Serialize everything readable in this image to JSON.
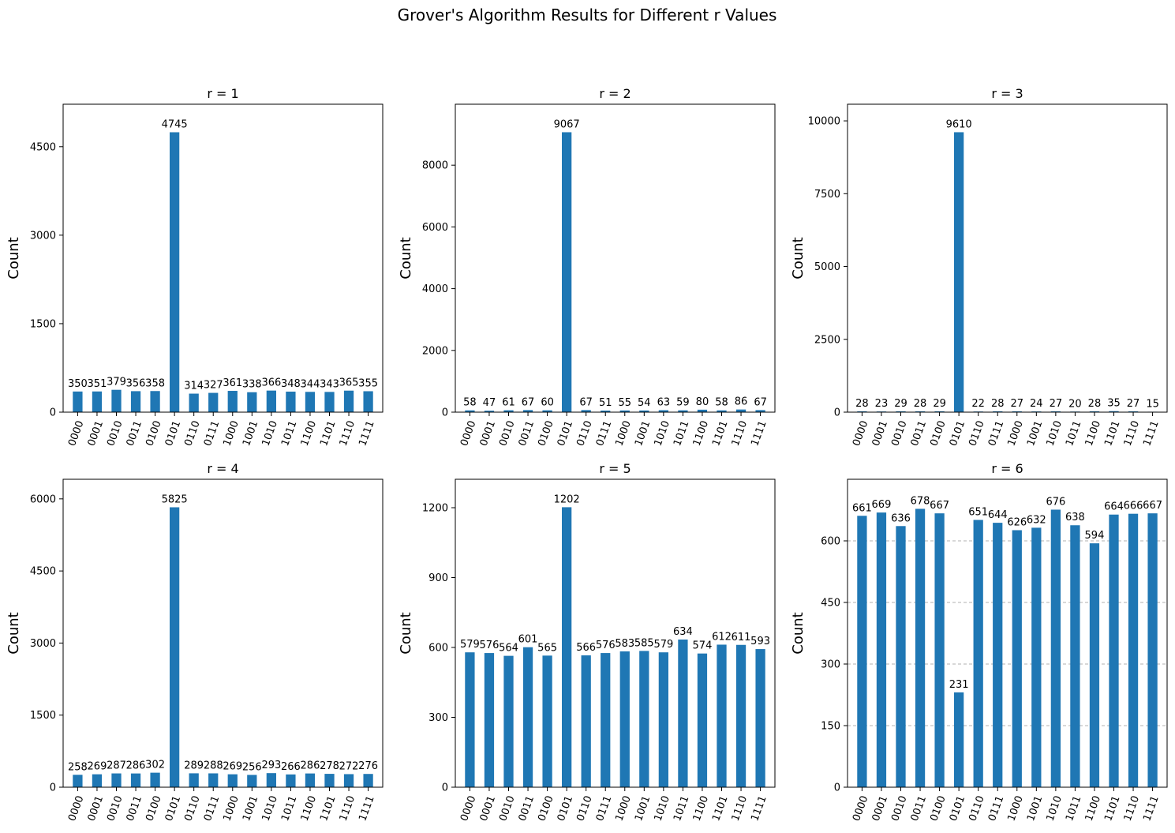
{
  "figure_title": "Grover's Algorithm Results for Different r Values",
  "colors": {
    "bar": "#1f77b4",
    "grid": "#b0b0b0"
  },
  "chart_data": [
    {
      "type": "bar",
      "title": "r = 1",
      "xlabel": "",
      "ylabel": "Count",
      "categories": [
        "0000",
        "0001",
        "0010",
        "0011",
        "0100",
        "0101",
        "0110",
        "0111",
        "1000",
        "1001",
        "1010",
        "1011",
        "1100",
        "1101",
        "1110",
        "1111"
      ],
      "values": [
        350,
        351,
        379,
        356,
        358,
        4745,
        314,
        327,
        361,
        338,
        366,
        348,
        344,
        343,
        365,
        355
      ],
      "ylim": [
        0,
        5220
      ],
      "yticks": [
        0,
        1500,
        3000,
        4500
      ],
      "grid": false
    },
    {
      "type": "bar",
      "title": "r = 2",
      "xlabel": "",
      "ylabel": "Count",
      "categories": [
        "0000",
        "0001",
        "0010",
        "0011",
        "0100",
        "0101",
        "0110",
        "0111",
        "1000",
        "1001",
        "1010",
        "1011",
        "1100",
        "1101",
        "1110",
        "1111"
      ],
      "values": [
        58,
        47,
        61,
        67,
        60,
        9067,
        67,
        51,
        55,
        54,
        63,
        59,
        80,
        58,
        86,
        67
      ],
      "ylim": [
        0,
        9974
      ],
      "yticks": [
        0,
        2000,
        4000,
        6000,
        8000
      ],
      "grid": false
    },
    {
      "type": "bar",
      "title": "r = 3",
      "xlabel": "",
      "ylabel": "Count",
      "categories": [
        "0000",
        "0001",
        "0010",
        "0011",
        "0100",
        "0101",
        "0110",
        "0111",
        "1000",
        "1001",
        "1010",
        "1011",
        "1100",
        "1101",
        "1110",
        "1111"
      ],
      "values": [
        28,
        23,
        29,
        28,
        29,
        9610,
        22,
        28,
        27,
        24,
        27,
        20,
        28,
        35,
        27,
        15
      ],
      "ylim": [
        0,
        10571
      ],
      "yticks": [
        0,
        2500,
        5000,
        7500,
        10000
      ],
      "grid": false
    },
    {
      "type": "bar",
      "title": "r = 4",
      "xlabel": "",
      "ylabel": "Count",
      "categories": [
        "0000",
        "0001",
        "0010",
        "0011",
        "0100",
        "0101",
        "0110",
        "0111",
        "1000",
        "1001",
        "1010",
        "1011",
        "1100",
        "1101",
        "1110",
        "1111"
      ],
      "values": [
        258,
        269,
        287,
        286,
        302,
        5825,
        289,
        288,
        269,
        256,
        293,
        266,
        286,
        278,
        272,
        276
      ],
      "ylim": [
        0,
        6408
      ],
      "yticks": [
        0,
        1500,
        3000,
        4500,
        6000
      ],
      "grid": false
    },
    {
      "type": "bar",
      "title": "r = 5",
      "xlabel": "",
      "ylabel": "Count",
      "categories": [
        "0000",
        "0001",
        "0010",
        "0011",
        "0100",
        "0101",
        "0110",
        "0111",
        "1000",
        "1001",
        "1010",
        "1011",
        "1100",
        "1101",
        "1110",
        "1111"
      ],
      "values": [
        579,
        576,
        564,
        601,
        565,
        1202,
        566,
        576,
        583,
        585,
        579,
        634,
        574,
        612,
        611,
        593
      ],
      "ylim": [
        0,
        1322
      ],
      "yticks": [
        0,
        300,
        600,
        900,
        1200
      ],
      "grid": false
    },
    {
      "type": "bar",
      "title": "r = 6",
      "xlabel": "",
      "ylabel": "Count",
      "categories": [
        "0000",
        "0001",
        "0010",
        "0011",
        "0100",
        "0101",
        "0110",
        "0111",
        "1000",
        "1001",
        "1010",
        "1011",
        "1100",
        "1101",
        "1110",
        "1111"
      ],
      "values": [
        661,
        669,
        636,
        678,
        667,
        231,
        651,
        644,
        626,
        632,
        676,
        638,
        594,
        664,
        666,
        667
      ],
      "ylim": [
        0,
        750
      ],
      "yticks": [
        0,
        150,
        300,
        450,
        600
      ],
      "grid": true
    }
  ]
}
